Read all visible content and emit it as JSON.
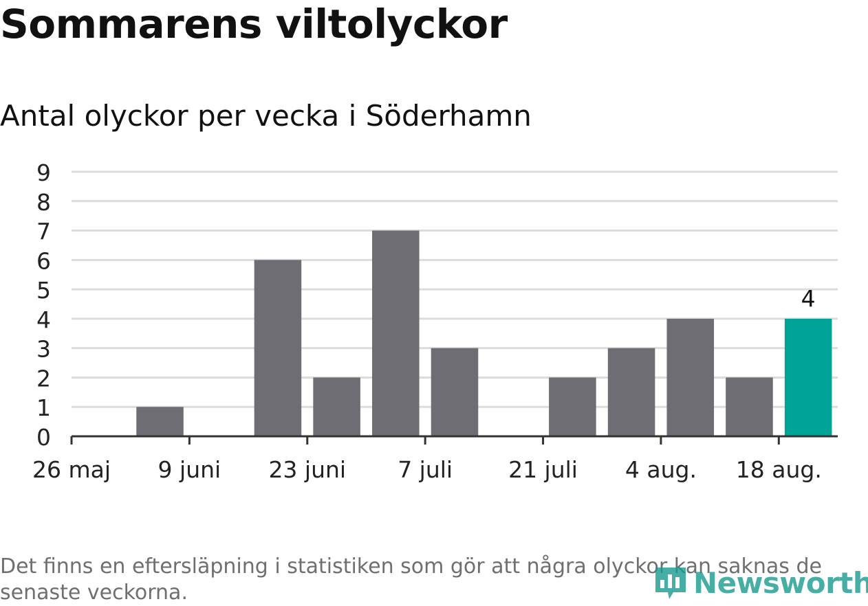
{
  "title": "Sommarens viltolyckor",
  "subtitle": "Antal olyckor per vecka i Söderhamn",
  "footnote": "Det finns en eftersläpning i statistiken som gör att några olyckor kan saknas de senaste veckorna.",
  "logo_text": "Newsworthy",
  "colors": {
    "bar": "#6e6d73",
    "highlight": "#00a398",
    "grid": "#dcdcdc",
    "axis": "#333333",
    "logo": "#1a9a91"
  },
  "chart_data": {
    "type": "bar",
    "categories": [
      "26 maj",
      "2 juni",
      "9 juni",
      "16 juni",
      "23 juni",
      "30 juni",
      "7 juli",
      "14 juli",
      "21 juli",
      "28 juli",
      "4 aug.",
      "11 aug.",
      "18 aug."
    ],
    "values": [
      0,
      1,
      0,
      6,
      2,
      7,
      3,
      0,
      2,
      3,
      4,
      2,
      4
    ],
    "x_tick_labels": [
      "26 maj",
      "9 juni",
      "23 juni",
      "7 juli",
      "21 juli",
      "4 aug.",
      "18 aug."
    ],
    "y_ticks": [
      0,
      1,
      2,
      3,
      4,
      5,
      6,
      7,
      8,
      9
    ],
    "ylim": [
      0,
      9
    ],
    "highlight_index": 12,
    "highlight_label": "4",
    "xlabel": "",
    "ylabel": "",
    "grid": true
  }
}
